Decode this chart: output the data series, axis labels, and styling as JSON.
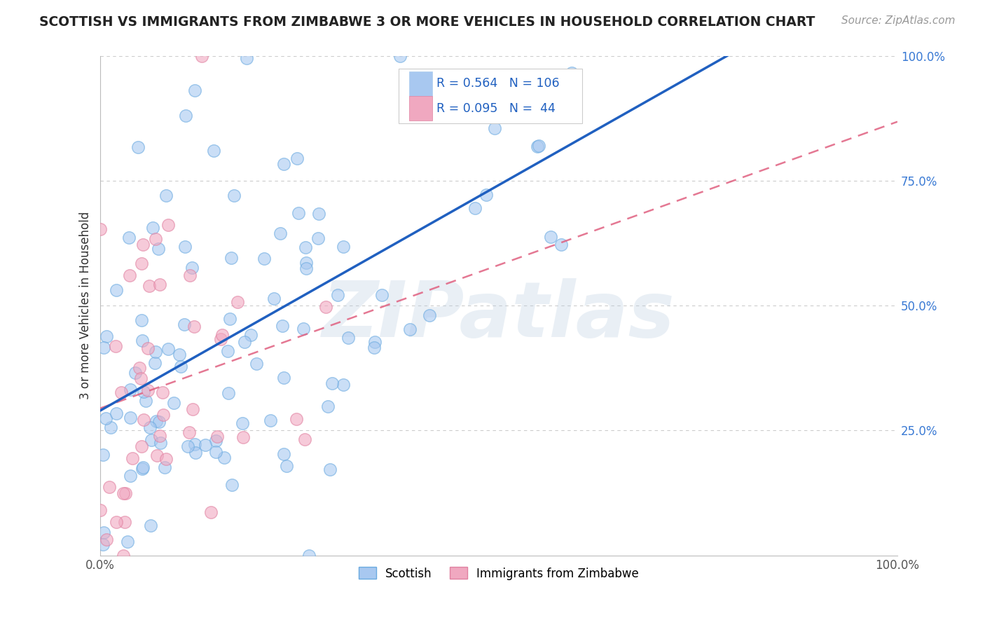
{
  "title": "SCOTTISH VS IMMIGRANTS FROM ZIMBABWE 3 OR MORE VEHICLES IN HOUSEHOLD CORRELATION CHART",
  "source": "Source: ZipAtlas.com",
  "ylabel_text": "3 or more Vehicles in Household",
  "watermark": "ZIPatlas",
  "scottish_R": 0.564,
  "scottish_N": 106,
  "zimbabwe_R": 0.095,
  "zimbabwe_N": 44,
  "x_min": 0.0,
  "x_max": 1.0,
  "y_min": 0.0,
  "y_max": 1.0,
  "scottish_color": "#a8c8f0",
  "zimbabwe_color": "#f0a8c0",
  "scottish_edge_color": "#6aaae0",
  "zimbabwe_edge_color": "#e080a0",
  "scottish_line_color": "#2060c0",
  "zimbabwe_line_color": "#e06080",
  "background_color": "#ffffff",
  "grid_color": "#cccccc",
  "title_color": "#222222",
  "tick_color_x": "#666666",
  "tick_color_y": "#3a7ad4"
}
